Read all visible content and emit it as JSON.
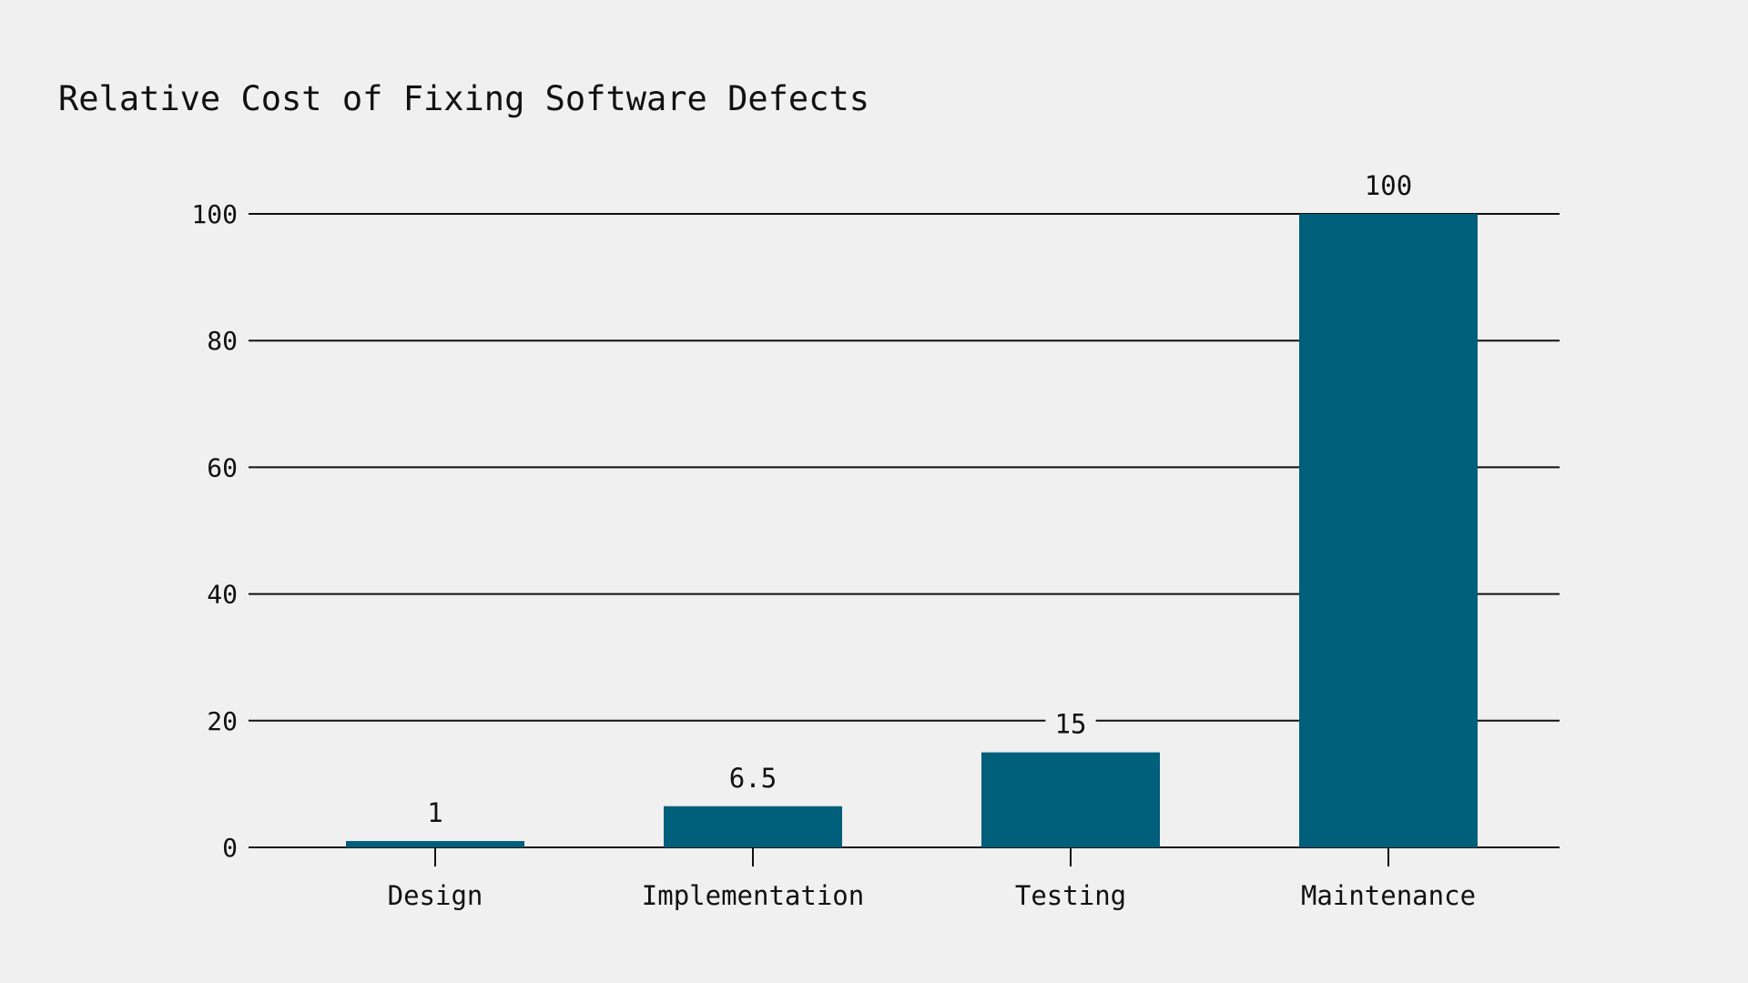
{
  "chart": {
    "title": "Relative Cost of Fixing Software Defects",
    "bar_color": "#005f7a",
    "background_color": "#f0f0f0",
    "grid_color": "#111111"
  },
  "chart_data": {
    "type": "bar",
    "title": "Relative Cost of Fixing Software Defects",
    "xlabel": "",
    "ylabel": "",
    "categories": [
      "Design",
      "Implementation",
      "Testing",
      "Maintenance"
    ],
    "values": [
      1,
      6.5,
      15,
      100
    ],
    "value_labels": [
      "1",
      "6.5",
      "15",
      "100"
    ],
    "ylim": [
      0,
      100
    ],
    "yticks": [
      0,
      20,
      40,
      60,
      80,
      100
    ],
    "ytick_labels": [
      "0",
      "20",
      "40",
      "60",
      "80",
      "100"
    ],
    "grid": true,
    "grid_axis": "y",
    "legend": null
  }
}
